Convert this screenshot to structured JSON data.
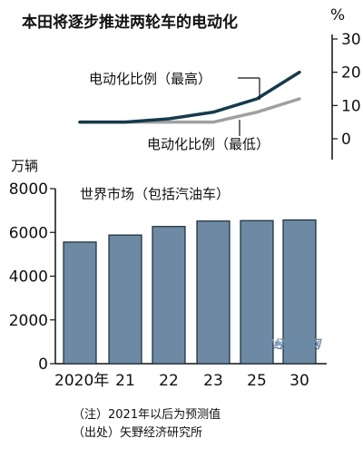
{
  "title": "本田将逐步推进两轮车的电动化",
  "notes": [
    "（注）2021年以后为预测值",
    "（出处）矢野经济研究所"
  ],
  "watermark": "日经中文网",
  "colors": {
    "bar_fill": "#6d89a3",
    "bar_stroke": "#1a2a36",
    "line_high": "#163a4c",
    "line_low": "#a0a0a0",
    "axis": "#111111"
  },
  "chart_data": [
    {
      "type": "line",
      "y_unit": "%",
      "y_ticks": [
        0,
        10,
        20,
        30
      ],
      "ylim": [
        0,
        30
      ],
      "x": [
        "2020年",
        "21",
        "22",
        "23",
        "25",
        "30"
      ],
      "series": [
        {
          "name": "电动化比例（最高）",
          "values": [
            5,
            5,
            6,
            8,
            12,
            20
          ]
        },
        {
          "name": "电动化比例（最低）",
          "values": [
            5,
            5,
            5,
            5,
            8,
            12
          ]
        }
      ],
      "grid": false
    },
    {
      "type": "bar",
      "title": "世界市场（包括汽油车）",
      "y_unit": "万辆",
      "y_ticks": [
        0,
        2000,
        4000,
        6000,
        8000
      ],
      "ylim": [
        0,
        8000
      ],
      "categories": [
        "2020年",
        "21",
        "22",
        "23",
        "25",
        "30"
      ],
      "values": [
        5560,
        5880,
        6270,
        6520,
        6540,
        6570
      ],
      "grid": false
    }
  ]
}
